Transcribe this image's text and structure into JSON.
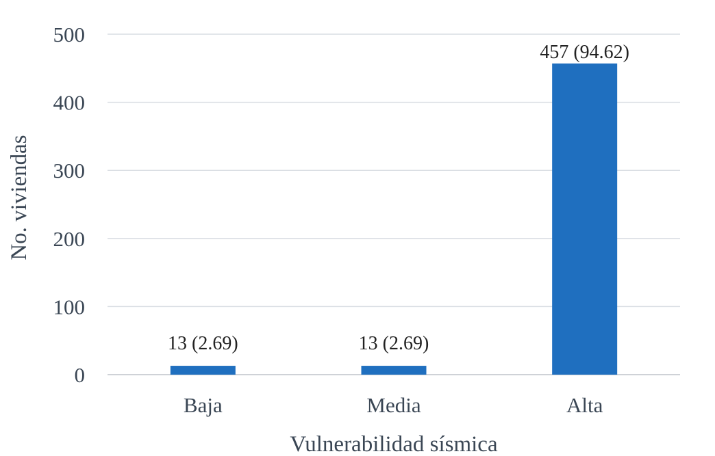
{
  "chart_data": {
    "type": "bar",
    "title": "",
    "xlabel": "Vulnerabilidad sísmica",
    "ylabel": "No. viviendas",
    "categories": [
      "Baja",
      "Media",
      "Alta"
    ],
    "values": [
      13,
      13,
      457
    ],
    "data_labels": [
      "13 (2.69)",
      "13 (2.69)",
      "457 (94.62)"
    ],
    "ylim": [
      0,
      500
    ],
    "yticks": [
      0,
      100,
      200,
      300,
      400,
      500
    ],
    "ytick_labels": [
      "0",
      "100",
      "200",
      "300",
      "400",
      "500"
    ],
    "grid": true,
    "legend": "none",
    "bar_color": "#1f6fbf"
  }
}
